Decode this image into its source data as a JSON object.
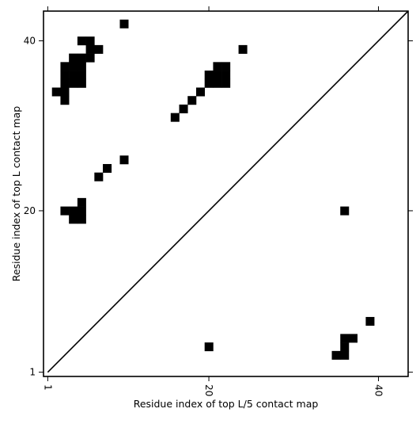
{
  "chart_data": {
    "type": "heatmap",
    "xlabel": "Residue index of top L/5 contact map",
    "ylabel": "Residue index of top L contact map",
    "xlim": [
      0.5,
      43.5
    ],
    "ylim": [
      0.5,
      43.5
    ],
    "x_ticks": [
      {
        "value": 1,
        "label": "1"
      },
      {
        "value": 20,
        "label": "20"
      },
      {
        "value": 40,
        "label": "40"
      }
    ],
    "y_ticks": [
      {
        "value": 1,
        "label": "1"
      },
      {
        "value": 20,
        "label": "20"
      },
      {
        "value": 40,
        "label": "40"
      }
    ],
    "diagonal": true,
    "cell_color": "#000000",
    "background_color": "#ffffff",
    "top_L_contacts": [
      [
        10,
        42
      ],
      [
        24,
        39
      ],
      [
        5,
        40
      ],
      [
        6,
        40
      ],
      [
        6,
        39
      ],
      [
        7,
        39
      ],
      [
        5,
        38
      ],
      [
        6,
        38
      ],
      [
        4,
        38
      ],
      [
        5,
        37
      ],
      [
        3,
        37
      ],
      [
        4,
        37
      ],
      [
        3,
        36
      ],
      [
        4,
        36
      ],
      [
        5,
        36
      ],
      [
        3,
        35
      ],
      [
        4,
        35
      ],
      [
        5,
        35
      ],
      [
        2,
        34
      ],
      [
        3,
        34
      ],
      [
        3,
        33
      ],
      [
        21,
        37
      ],
      [
        22,
        37
      ],
      [
        20,
        36
      ],
      [
        21,
        36
      ],
      [
        22,
        36
      ],
      [
        20,
        35
      ],
      [
        21,
        35
      ],
      [
        22,
        35
      ],
      [
        19,
        34
      ],
      [
        18,
        33
      ],
      [
        17,
        32
      ],
      [
        16,
        31
      ],
      [
        10,
        26
      ],
      [
        8,
        25
      ],
      [
        7,
        24
      ],
      [
        5,
        21
      ],
      [
        3,
        20
      ],
      [
        4,
        20
      ],
      [
        5,
        20
      ],
      [
        4,
        19
      ],
      [
        5,
        19
      ]
    ],
    "top_L5_contacts": [
      [
        36,
        20
      ],
      [
        39,
        7
      ],
      [
        20,
        4
      ],
      [
        36,
        5
      ],
      [
        37,
        5
      ],
      [
        36,
        4
      ],
      [
        35,
        3
      ],
      [
        36,
        3
      ]
    ]
  }
}
